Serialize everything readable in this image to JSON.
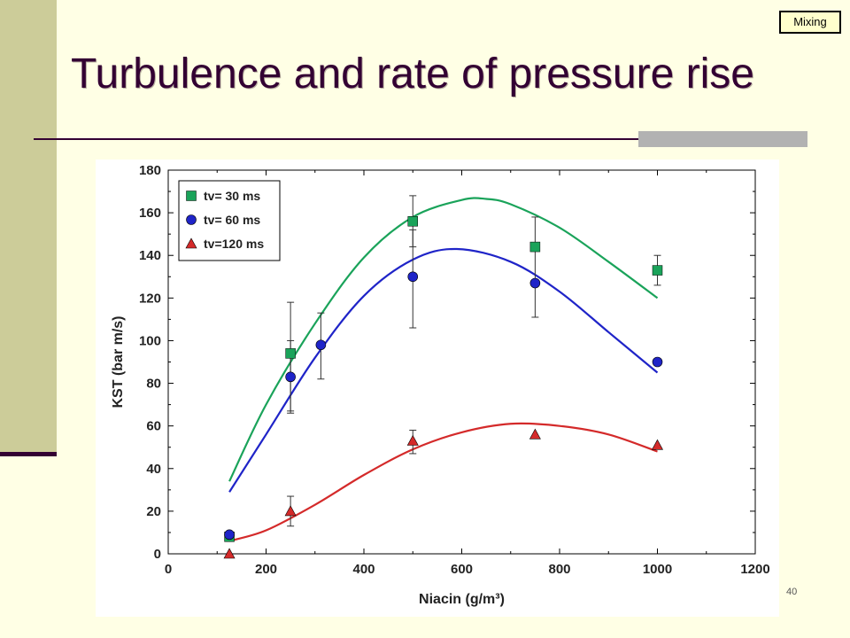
{
  "slide": {
    "title": "Turbulence and rate of pressure rise",
    "nav_button_label": "Mixing",
    "page_number": "40"
  },
  "colors": {
    "green": "#1aa35a",
    "blue": "#1f24c8",
    "red": "#d42a2a"
  },
  "chart_data": {
    "type": "scatter",
    "title": "",
    "xlabel": "Niacin (g/m³)",
    "ylabel": "KST (bar m/s)",
    "xlim": [
      0,
      1200
    ],
    "ylim": [
      0,
      180
    ],
    "xticks": [
      0,
      200,
      400,
      600,
      800,
      1000,
      1200
    ],
    "yticks": [
      0,
      20,
      40,
      60,
      80,
      100,
      120,
      140,
      160,
      180
    ],
    "grid": false,
    "legend": "top-left",
    "series": [
      {
        "name": "tv= 30 ms",
        "marker": "square",
        "color": "#1aa35a",
        "x": [
          125,
          250,
          500,
          750,
          1000
        ],
        "y": [
          8,
          94,
          156,
          144,
          133
        ],
        "err": [
          null,
          [
            66,
            118
          ],
          [
            144,
            168
          ],
          [
            111,
            158
          ],
          [
            126,
            140
          ]
        ],
        "fit": {
          "x": [
            125,
            200,
            300,
            400,
            500,
            600,
            650,
            700,
            800,
            900,
            1000
          ],
          "y": [
            34,
            70,
            108,
            139,
            158,
            166,
            166.5,
            164,
            153,
            137,
            120
          ]
        }
      },
      {
        "name": "tv= 60 ms",
        "marker": "circle",
        "color": "#1f24c8",
        "x": [
          125,
          250,
          312,
          500,
          750,
          1000
        ],
        "y": [
          9,
          83,
          98,
          130,
          127,
          90
        ],
        "err": [
          null,
          [
            67,
            100
          ],
          [
            82,
            113
          ],
          [
            106,
            152
          ],
          null,
          null
        ],
        "fit": {
          "x": [
            125,
            200,
            300,
            400,
            500,
            590,
            700,
            800,
            900,
            1000
          ],
          "y": [
            29,
            56,
            92,
            121,
            138,
            143,
            137,
            123,
            104,
            85
          ]
        }
      },
      {
        "name": "tv=120 ms",
        "marker": "triangle",
        "color": "#d42a2a",
        "x": [
          125,
          250,
          500,
          750,
          1000
        ],
        "y": [
          0,
          20,
          53,
          56,
          51
        ],
        "err": [
          null,
          [
            13,
            27
          ],
          [
            47,
            58
          ],
          null,
          null
        ],
        "fit": {
          "x": [
            125,
            200,
            300,
            400,
            500,
            600,
            700,
            800,
            900,
            1000
          ],
          "y": [
            6,
            11,
            23,
            37,
            49,
            57,
            61,
            60,
            56,
            48
          ]
        }
      }
    ]
  }
}
